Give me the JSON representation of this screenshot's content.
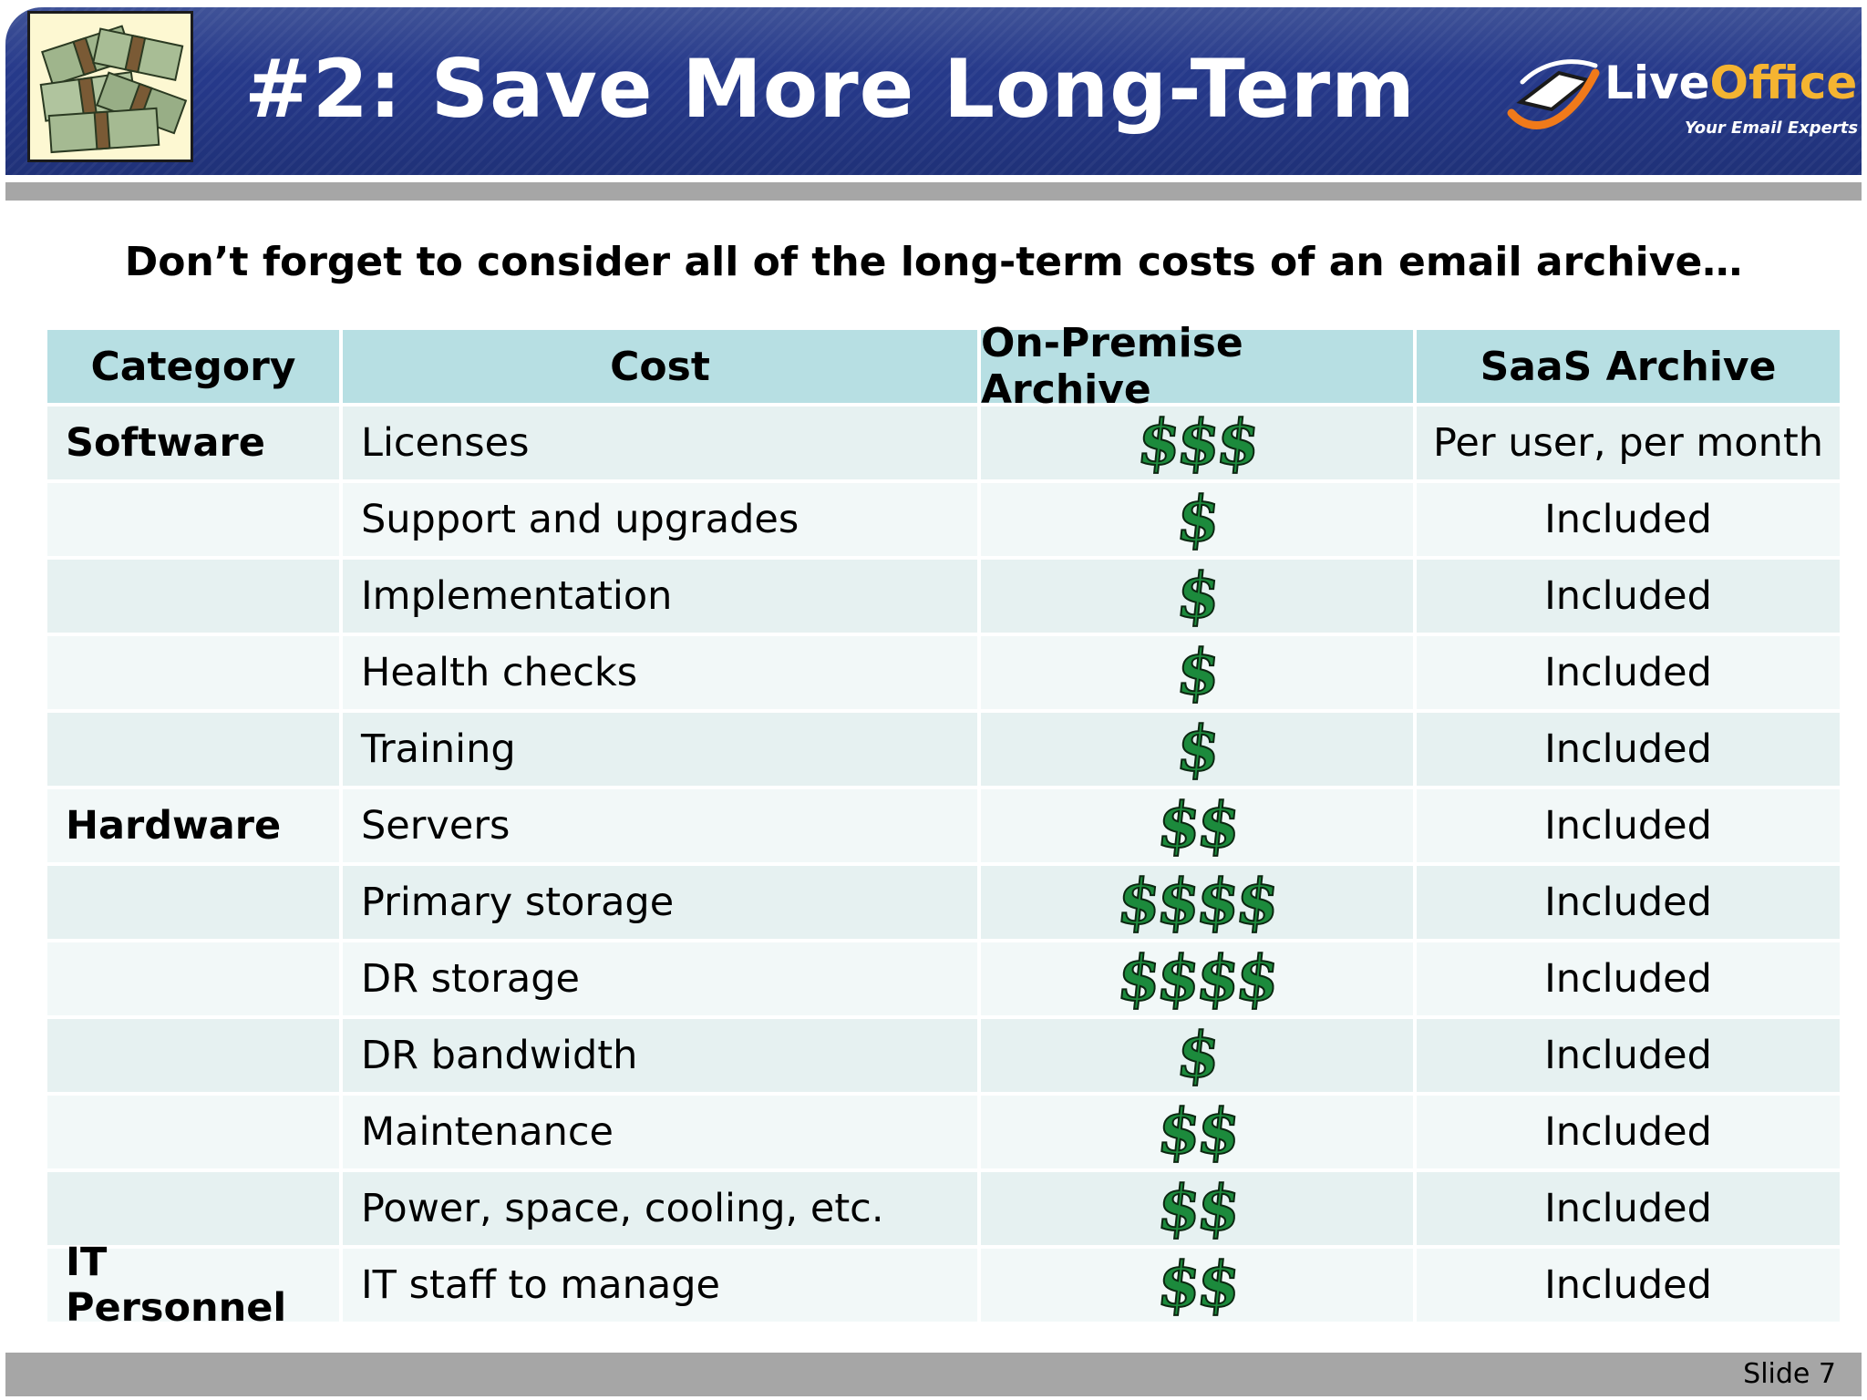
{
  "header": {
    "title": "#2: Save More Long-Term",
    "logo": {
      "text_live": "Live",
      "text_office": "Office",
      "tagline": "Your Email Experts"
    },
    "image_icon": "money-stack-icon"
  },
  "subtitle": "Don’t forget to consider all of the long-term costs of an email archive…",
  "table": {
    "headers": [
      "Category",
      "Cost",
      "On-Premise Archive",
      "SaaS Archive"
    ],
    "rows": [
      {
        "category": "Software",
        "cost": "Licenses",
        "on_premise": "$$$",
        "saas": "Per user, per month"
      },
      {
        "category": "",
        "cost": "Support and upgrades",
        "on_premise": "$",
        "saas": "Included"
      },
      {
        "category": "",
        "cost": "Implementation",
        "on_premise": "$",
        "saas": "Included"
      },
      {
        "category": "",
        "cost": "Health checks",
        "on_premise": "$",
        "saas": "Included"
      },
      {
        "category": "",
        "cost": "Training",
        "on_premise": "$",
        "saas": "Included"
      },
      {
        "category": "Hardware",
        "cost": "Servers",
        "on_premise": "$$",
        "saas": "Included"
      },
      {
        "category": "",
        "cost": "Primary storage",
        "on_premise": "$$$$",
        "saas": "Included"
      },
      {
        "category": "",
        "cost": "DR storage",
        "on_premise": "$$$$",
        "saas": "Included"
      },
      {
        "category": "",
        "cost": "DR bandwidth",
        "on_premise": "$",
        "saas": "Included"
      },
      {
        "category": "",
        "cost": "Maintenance",
        "on_premise": "$$",
        "saas": "Included"
      },
      {
        "category": "",
        "cost": "Power, space, cooling, etc.",
        "on_premise": "$$",
        "saas": "Included"
      },
      {
        "category": "IT Personnel",
        "cost": "IT staff to manage",
        "on_premise": "$$",
        "saas": "Included"
      }
    ]
  },
  "footer": {
    "slide_label": "Slide 7"
  },
  "colors": {
    "banner": "#26398a",
    "header_row": "#b7dfe3",
    "row_band_a": "#e6f1f1",
    "row_band_b": "#f2f8f8",
    "dollar_green": "#1c8a3c",
    "logo_orange": "#f5b431"
  }
}
